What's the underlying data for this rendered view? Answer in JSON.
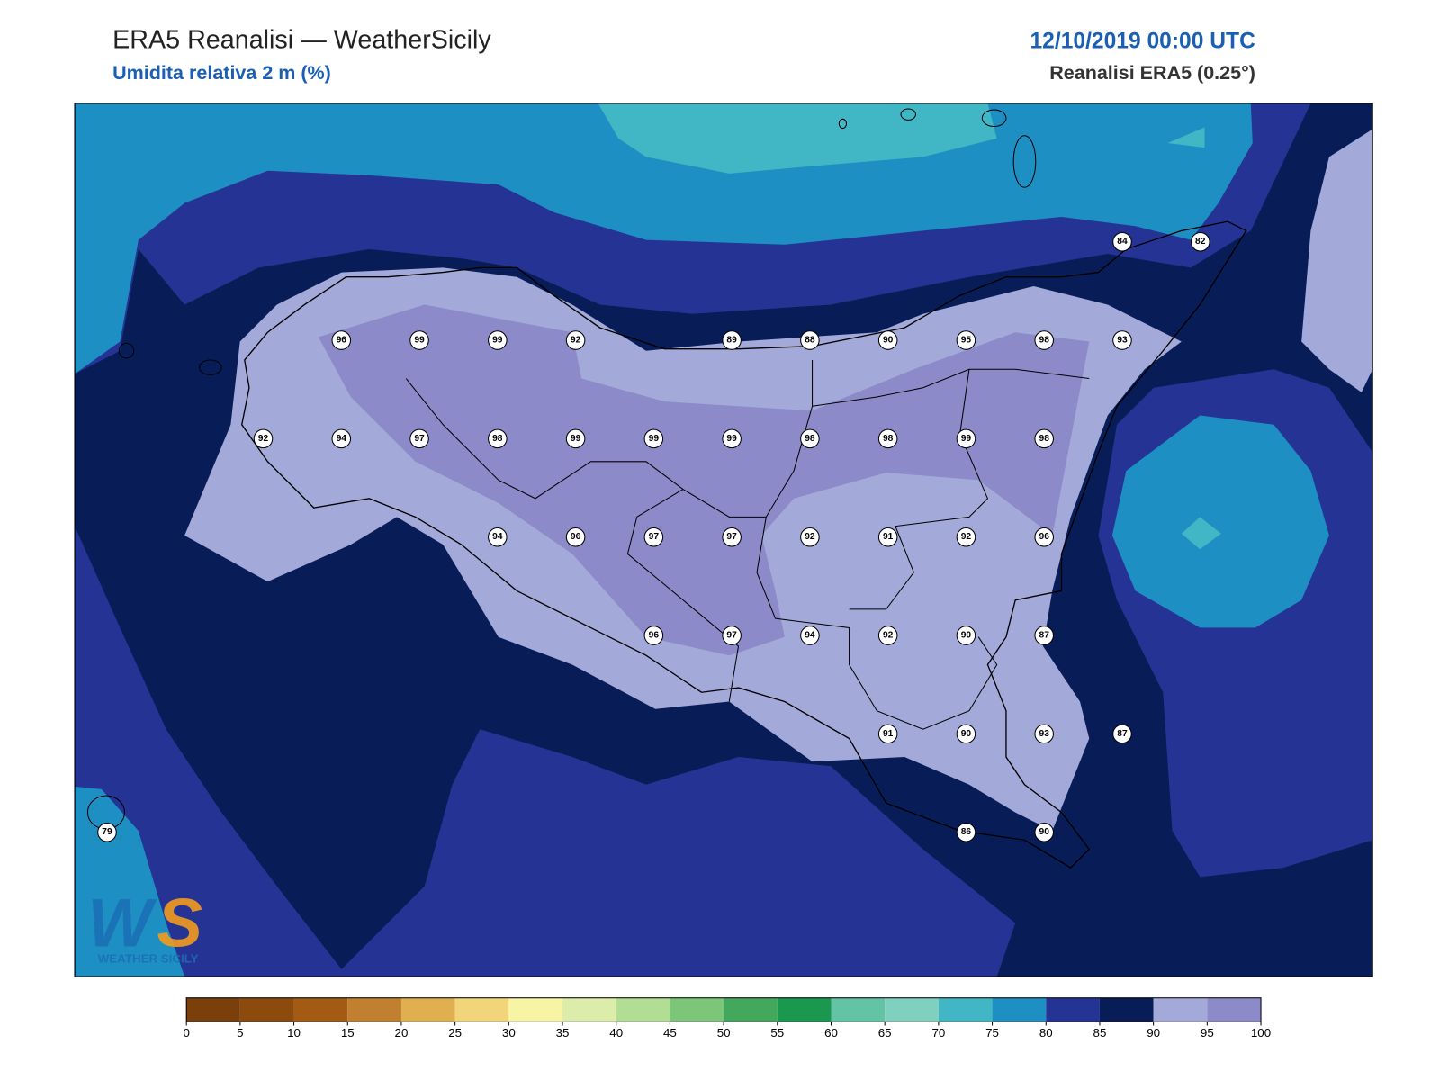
{
  "header": {
    "title": "ERA5 Reanalisi — WeatherSicily",
    "subtitle": "Umidita relativa 2 m (%)",
    "datetime": "12/10/2019 00:00 UTC",
    "source": "Reanalisi ERA5 (0.25°)"
  },
  "stations": {
    "rows": [
      [
        null,
        null,
        null,
        null,
        null,
        null,
        null,
        null,
        null,
        null,
        null,
        null,
        null,
        84,
        82
      ],
      [
        null,
        null,
        null,
        96,
        99,
        99,
        92,
        null,
        89,
        88,
        90,
        95,
        98,
        93,
        null
      ],
      [
        null,
        null,
        92,
        94,
        97,
        98,
        99,
        99,
        99,
        98,
        98,
        99,
        98,
        null,
        null
      ],
      [
        null,
        null,
        null,
        null,
        null,
        94,
        96,
        97,
        97,
        92,
        91,
        92,
        96,
        null,
        null
      ],
      [
        null,
        null,
        null,
        null,
        null,
        null,
        null,
        96,
        97,
        94,
        92,
        90,
        87,
        null,
        null
      ],
      [
        null,
        null,
        null,
        null,
        null,
        null,
        null,
        null,
        null,
        null,
        91,
        90,
        93,
        87,
        null
      ],
      [
        79,
        null,
        null,
        null,
        null,
        null,
        null,
        null,
        null,
        null,
        null,
        86,
        90,
        null,
        null
      ]
    ]
  },
  "colorbar": {
    "ticks": [
      0,
      5,
      10,
      15,
      20,
      25,
      30,
      35,
      40,
      45,
      50,
      55,
      60,
      65,
      70,
      75,
      80,
      85,
      90,
      95,
      100
    ],
    "colors": [
      "#7a3f0a",
      "#8c4a0c",
      "#a35a12",
      "#c08030",
      "#e0b050",
      "#f2d57a",
      "#f7f4a6",
      "#dcedaa",
      "#b1de93",
      "#7cc67a",
      "#43a85c",
      "#1b9850",
      "#62c3a5",
      "#80d0c0",
      "#41b6c4",
      "#1d8fc3",
      "#253494",
      "#081d58",
      "#a3aad9",
      "#8c8ac8"
    ]
  },
  "logo": {
    "text": "WEATHER SICILY"
  }
}
